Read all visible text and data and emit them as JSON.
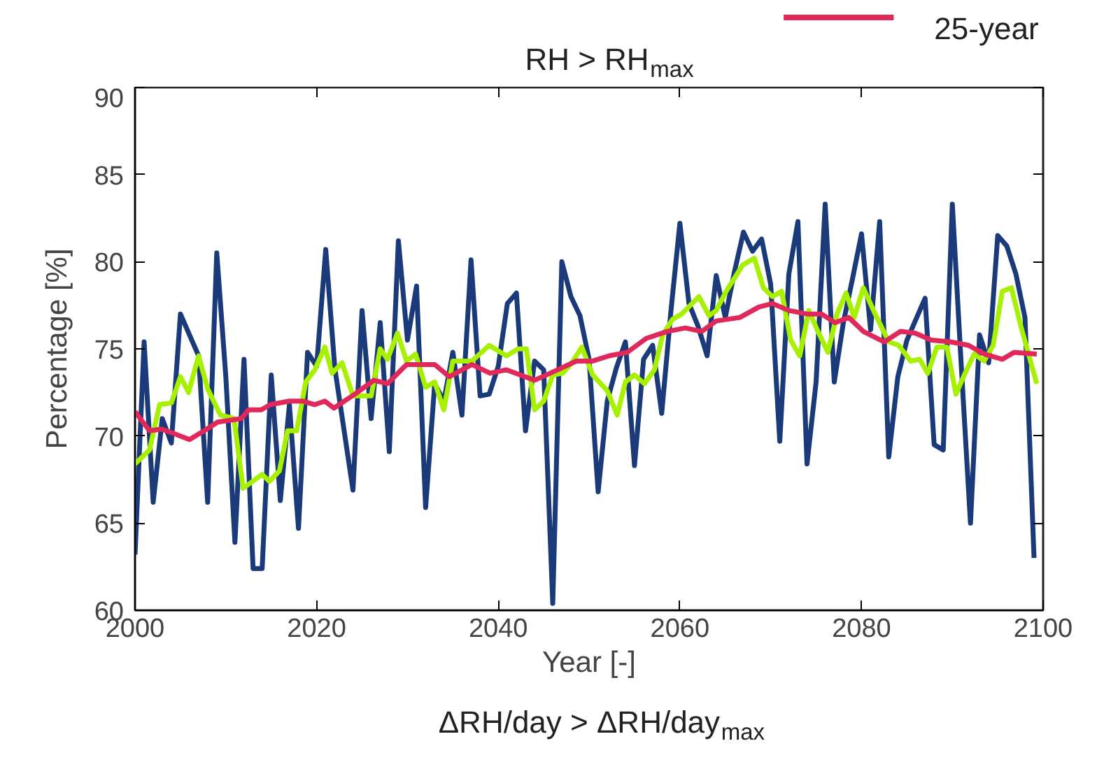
{
  "chart_data": {
    "type": "line",
    "title": "RH > RH$_{max}$",
    "xlabel": "Year [-]",
    "ylabel": "Percentage [%]",
    "annotations": [
      "ΔRH/day > ΔRH/day$_{max}$"
    ],
    "xlim": [
      2000,
      2100
    ],
    "xticks": [
      2000,
      2020,
      2040,
      2060,
      2080,
      2100
    ],
    "ylim": [
      60,
      90
    ],
    "yticks": [
      60,
      65,
      70,
      75,
      80,
      85,
      90
    ],
    "grid": false,
    "legend": "top right",
    "marker": "none",
    "line_style": "solid",
    "series": [
      {
        "color": "#1a3a7a",
        "x": [
          2000,
          2001,
          2002,
          2003,
          2004,
          2005,
          2006,
          2007,
          2008,
          2009,
          2010,
          2011,
          2012,
          2013,
          2014,
          2015,
          2016,
          2017,
          2018,
          2019,
          2020,
          2021,
          2022,
          2023,
          2024,
          2025,
          2026,
          2027,
          2028,
          2029,
          2030,
          2031,
          2032,
          2033,
          2034,
          2035,
          2036,
          2037,
          2038,
          2039,
          2040,
          2041,
          2042,
          2043,
          2044,
          2045,
          2046,
          2047,
          2048,
          2049,
          2050,
          2051,
          2052,
          2053,
          2054,
          2055,
          2056,
          2057,
          2058,
          2059,
          2060,
          2061,
          2062,
          2063,
          2064,
          2065,
          2066,
          2067,
          2068,
          2069,
          2070,
          2071,
          2072,
          2073,
          2074,
          2075,
          2076,
          2077,
          2078,
          2079,
          2080,
          2081,
          2082,
          2083,
          2084,
          2085,
          2086,
          2087,
          2088,
          2089,
          2090,
          2091,
          2092,
          2093,
          2094,
          2095,
          2096,
          2097,
          2098,
          2099
        ],
        "values": [
          63.2,
          75.4,
          66.2,
          71.0,
          69.6,
          77.0,
          75.8,
          74.6,
          66.2,
          80.5,
          73.4,
          63.9,
          74.4,
          62.4,
          62.4,
          73.5,
          66.3,
          71.8,
          64.7,
          74.8,
          74.0,
          80.7,
          73.9,
          70.4,
          66.9,
          77.2,
          71.0,
          76.5,
          69.1,
          81.2,
          75.5,
          78.6,
          65.9,
          73.0,
          72.0,
          74.8,
          71.2,
          80.1,
          72.3,
          72.4,
          74.0,
          77.6,
          78.2,
          70.3,
          74.3,
          73.8,
          60.4,
          80.0,
          78.0,
          76.9,
          74.4,
          66.8,
          72.0,
          73.9,
          75.4,
          68.3,
          74.4,
          75.2,
          71.3,
          77.1,
          82.2,
          77.6,
          76.3,
          74.6,
          79.2,
          76.8,
          79.4,
          81.7,
          80.6,
          81.3,
          78.7,
          69.7,
          79.3,
          82.3,
          68.4,
          73.1,
          83.3,
          73.1,
          76.5,
          79.0,
          81.6,
          76.1,
          82.3,
          68.8,
          73.4,
          75.5,
          76.7,
          77.9,
          69.5,
          69.2,
          83.3,
          73.9,
          65.0,
          75.8,
          74.2,
          81.5,
          80.9,
          79.3,
          76.8,
          63.0
        ]
      },
      {
        "color": "#a6f000",
        "x": [
          2000,
          2001.6,
          2002.7,
          2004,
          2005,
          2005.9,
          2007,
          2008,
          2009.4,
          2010.9,
          2011.9,
          2014,
          2014.8,
          2015.9,
          2016.8,
          2017.8,
          2018.8,
          2019.8,
          2020.9,
          2021.7,
          2022.8,
          2024,
          2026,
          2027,
          2027.8,
          2028.9,
          2029.9,
          2030.9,
          2032,
          2033,
          2034,
          2035,
          2037.1,
          2039,
          2040.9,
          2042.2,
          2043.1,
          2044,
          2045,
          2046,
          2047.1,
          2048.1,
          2049.2,
          2050.4,
          2052,
          2053.1,
          2054,
          2055,
          2056.1,
          2057.2,
          2058.1,
          2059.2,
          2060.2,
          2062.1,
          2063.2,
          2064,
          2065.1,
          2066.9,
          2068.2,
          2069.2,
          2070.2,
          2071.2,
          2072.2,
          2073.2,
          2074.2,
          2075.2,
          2076.3,
          2077.3,
          2078.3,
          2079.2,
          2080.2,
          2081.5,
          2083,
          2084.1,
          2085.4,
          2086.4,
          2087.3,
          2088.3,
          2089.4,
          2090.4,
          2091.4,
          2092.4,
          2093.5,
          2094.5,
          2095.5,
          2096.5,
          2097.6,
          2099.3
        ],
        "values": [
          68.4,
          69.2,
          71.8,
          71.9,
          73.4,
          72.5,
          74.6,
          72.7,
          71.2,
          71.0,
          67.0,
          67.8,
          67.4,
          68.0,
          70.3,
          70.3,
          73.1,
          73.8,
          75.1,
          73.6,
          74.2,
          72.3,
          72.3,
          75.0,
          74.4,
          75.9,
          74.3,
          74.7,
          72.8,
          73.1,
          71.5,
          74.3,
          74.3,
          75.2,
          74.6,
          75.0,
          75.0,
          71.5,
          72.0,
          73.5,
          73.6,
          74.2,
          75.1,
          73.5,
          72.6,
          71.2,
          73.1,
          73.5,
          73.0,
          73.8,
          75.8,
          76.7,
          77.0,
          78.0,
          76.9,
          77.2,
          78.3,
          79.8,
          80.2,
          78.5,
          78.0,
          78.3,
          75.5,
          74.6,
          77.2,
          76.0,
          74.8,
          77.0,
          78.2,
          76.8,
          78.5,
          77.0,
          75.4,
          75.2,
          74.3,
          74.4,
          73.6,
          75.1,
          75.1,
          72.4,
          73.6,
          74.7,
          74.3,
          75.2,
          78.3,
          78.5,
          76.2,
          73.0
        ]
      },
      {
        "name": "25-year",
        "color": "#e0285a",
        "x": [
          2000,
          2001.6,
          2002.9,
          2004,
          2006,
          2007.6,
          2009.1,
          2011.7,
          2012.5,
          2013.9,
          2014.9,
          2017,
          2018.5,
          2019.8,
          2020.9,
          2021.9,
          2024.2,
          2026.3,
          2027.8,
          2029.9,
          2031.2,
          2033,
          2034.6,
          2037.1,
          2039.1,
          2040.9,
          2044,
          2045.3,
          2048.6,
          2050.4,
          2052.2,
          2054.2,
          2056.3,
          2058.6,
          2060.6,
          2062.4,
          2064,
          2066.6,
          2068.7,
          2070.2,
          2072,
          2074,
          2075.6,
          2077.1,
          2078.6,
          2080.2,
          2082.5,
          2084.3,
          2085.9,
          2087.7,
          2089.8,
          2091.8,
          2093.5,
          2095.5,
          2096.8,
          2099.3
        ],
        "values": [
          71.4,
          70.3,
          70.4,
          70.2,
          69.8,
          70.3,
          70.8,
          71.0,
          71.5,
          71.5,
          71.8,
          72.0,
          72.0,
          71.8,
          72.0,
          71.6,
          72.4,
          73.2,
          73.0,
          74.1,
          74.1,
          74.1,
          73.4,
          74.1,
          73.6,
          73.8,
          73.2,
          73.5,
          74.3,
          74.3,
          74.6,
          74.8,
          75.6,
          76.0,
          76.2,
          76.0,
          76.6,
          76.8,
          77.4,
          77.6,
          77.2,
          77.0,
          77.0,
          76.5,
          76.8,
          76.0,
          75.4,
          76.0,
          75.9,
          75.5,
          75.4,
          75.2,
          74.7,
          74.4,
          74.8,
          74.7
        ]
      }
    ]
  }
}
